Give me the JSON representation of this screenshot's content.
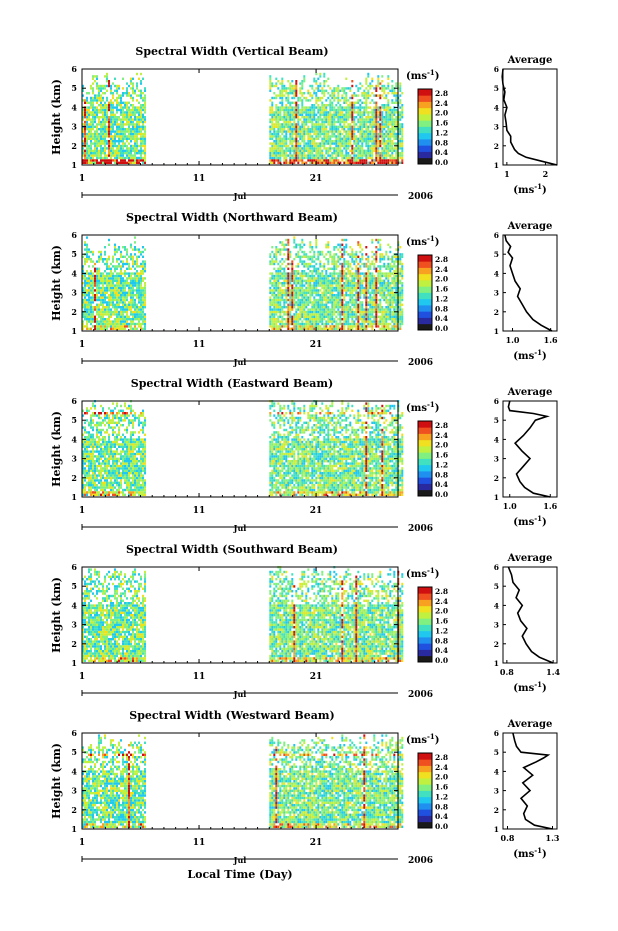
{
  "colors": {
    "colormap": [
      "#1a1a1a",
      "#2a2aa0",
      "#2050e0",
      "#2090f0",
      "#20c8f0",
      "#40e0c0",
      "#80f080",
      "#c0f040",
      "#f0e020",
      "#f8a020",
      "#f05020",
      "#d01010"
    ],
    "line": "#000000"
  },
  "common": {
    "xticks": [
      "1",
      "11",
      "21"
    ],
    "month": "Jul",
    "year": "2006",
    "ylabel": "Height (km)",
    "yticks": [
      "1",
      "2",
      "3",
      "4",
      "5",
      "6"
    ],
    "unit": "(ms",
    "unit_sup": "-1",
    "unit_close": ")",
    "avg_title": "Average",
    "xlabel": "Local Time (Day)"
  },
  "chart_data": [
    {
      "type": "heatmap",
      "title": "Spectral Width (Vertical Beam)",
      "colorbar_ticks": [
        "2.8",
        "2.4",
        "2.0",
        "1.6",
        "1.2",
        "0.8",
        "0.4",
        "0.0"
      ],
      "data_days": [
        [
          1,
          6
        ],
        [
          17,
          28
        ]
      ],
      "top_height_km": 5.5,
      "low_level_bias": 0.9,
      "seed": 11,
      "average": {
        "type": "line",
        "xticks": [
          "1",
          "2"
        ],
        "xlim": [
          0.9,
          2.3
        ],
        "xtick_values": [
          1,
          2
        ],
        "height": [
          1.0,
          1.2,
          1.4,
          1.6,
          1.8,
          2.0,
          2.2,
          2.5,
          2.8,
          3.2,
          3.6,
          4.0,
          4.4,
          4.8,
          5.2,
          5.6,
          6.0
        ],
        "value": [
          2.3,
          1.9,
          1.5,
          1.3,
          1.2,
          1.15,
          1.1,
          1.1,
          1.0,
          0.98,
          0.95,
          1.0,
          0.92,
          0.95,
          0.9,
          0.88,
          0.9
        ]
      }
    },
    {
      "type": "heatmap",
      "title": "Spectral Width (Northward Beam)",
      "colorbar_ticks": [
        "2.8",
        "2.4",
        "2.0",
        "1.6",
        "1.2",
        "0.8",
        "0.4",
        "0.0"
      ],
      "data_days": [
        [
          1,
          6
        ],
        [
          17,
          28
        ]
      ],
      "top_height_km": 5.6,
      "low_level_bias": 0.25,
      "seed": 23,
      "average": {
        "type": "line",
        "xticks": [
          "1.0",
          "1.6"
        ],
        "xlim": [
          0.85,
          1.7
        ],
        "xtick_values": [
          1.0,
          1.6
        ],
        "height": [
          1.0,
          1.3,
          1.6,
          2.0,
          2.4,
          2.8,
          3.2,
          3.6,
          4.0,
          4.4,
          4.8,
          5.1,
          5.4,
          5.7,
          6.0
        ],
        "value": [
          1.62,
          1.45,
          1.32,
          1.22,
          1.15,
          1.08,
          1.12,
          1.04,
          1.0,
          0.96,
          1.0,
          0.93,
          0.97,
          0.9,
          0.88
        ]
      }
    },
    {
      "type": "heatmap",
      "title": "Spectral Width (Eastward Beam)",
      "colorbar_ticks": [
        "2.8",
        "2.4",
        "2.0",
        "1.6",
        "1.2",
        "0.8",
        "0.4",
        "0.0"
      ],
      "data_days": [
        [
          1,
          6
        ],
        [
          17,
          28
        ]
      ],
      "top_height_km": 5.8,
      "low_level_bias": 0.3,
      "band_km": 5.3,
      "seed": 37,
      "average": {
        "type": "line",
        "xticks": [
          "1.0",
          "1.6"
        ],
        "xlim": [
          0.9,
          1.7
        ],
        "xtick_values": [
          1.0,
          1.6
        ],
        "height": [
          1.0,
          1.2,
          1.5,
          1.8,
          2.2,
          2.6,
          3.0,
          3.4,
          3.8,
          4.2,
          4.6,
          5.0,
          5.2,
          5.35,
          5.5,
          5.7,
          6.0
        ],
        "value": [
          1.6,
          1.35,
          1.22,
          1.15,
          1.1,
          1.2,
          1.3,
          1.18,
          1.08,
          1.2,
          1.3,
          1.38,
          1.55,
          1.35,
          1.0,
          0.98,
          1.0
        ]
      }
    },
    {
      "type": "heatmap",
      "title": "Spectral Width (Southward Beam)",
      "colorbar_ticks": [
        "2.8",
        "2.4",
        "2.0",
        "1.6",
        "1.2",
        "0.8",
        "0.4",
        "0.0"
      ],
      "data_days": [
        [
          1,
          6
        ],
        [
          17,
          28
        ]
      ],
      "top_height_km": 5.7,
      "low_level_bias": 0.3,
      "seed": 51,
      "average": {
        "type": "line",
        "xticks": [
          "0.8",
          "1.4"
        ],
        "xlim": [
          0.75,
          1.45
        ],
        "xtick_values": [
          0.8,
          1.4
        ],
        "height": [
          1.0,
          1.3,
          1.6,
          2.0,
          2.4,
          2.8,
          3.2,
          3.6,
          4.0,
          4.4,
          4.8,
          5.2,
          5.6,
          6.0
        ],
        "value": [
          1.4,
          1.22,
          1.12,
          1.05,
          1.0,
          1.06,
          0.98,
          0.94,
          1.0,
          0.92,
          0.96,
          0.88,
          0.86,
          0.82
        ]
      }
    },
    {
      "type": "heatmap",
      "title": "Spectral Width (Westward Beam)",
      "colorbar_ticks": [
        "2.8",
        "2.4",
        "2.0",
        "1.6",
        "1.2",
        "0.8",
        "0.4",
        "0.0"
      ],
      "data_days": [
        [
          1,
          6
        ],
        [
          17,
          28
        ]
      ],
      "top_height_km": 5.6,
      "low_level_bias": 0.3,
      "band_km": 4.8,
      "seed": 67,
      "average": {
        "type": "line",
        "xticks": [
          "0.8",
          "1.3"
        ],
        "xlim": [
          0.75,
          1.35
        ],
        "xtick_values": [
          0.8,
          1.3
        ],
        "height": [
          1.0,
          1.2,
          1.5,
          1.8,
          2.2,
          2.6,
          3.0,
          3.4,
          3.8,
          4.2,
          4.5,
          4.7,
          4.85,
          5.0,
          5.3,
          5.6,
          6.0
        ],
        "value": [
          1.3,
          1.1,
          1.0,
          0.98,
          1.02,
          0.95,
          1.05,
          0.97,
          1.08,
          0.98,
          1.12,
          1.2,
          1.25,
          0.95,
          0.9,
          0.88,
          0.86
        ]
      }
    }
  ]
}
